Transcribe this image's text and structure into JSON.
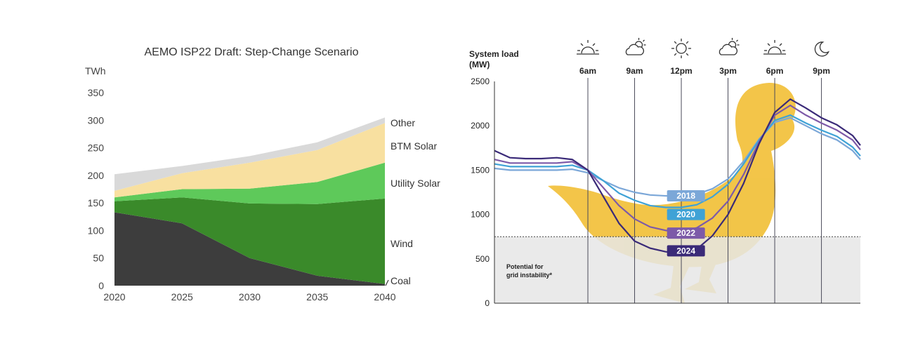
{
  "chart_data": [
    {
      "type": "area",
      "stacked": true,
      "title": "AEMO ISP22 Draft: Step-Change Scenario",
      "ylabel": "TWh",
      "xlabel": "",
      "ylim": [
        0,
        350
      ],
      "xlim": [
        2020,
        2040
      ],
      "x": [
        2020,
        2025,
        2030,
        2035,
        2040
      ],
      "yticks": [
        "0",
        "50",
        "100",
        "150",
        "200",
        "250",
        "300",
        "350"
      ],
      "xticks": [
        "2020",
        "2025",
        "2030",
        "2035",
        "2040"
      ],
      "grid": false,
      "series": [
        {
          "name": "Coal",
          "color": "#3d3d3d",
          "values": [
            133,
            113,
            50,
            18,
            3
          ]
        },
        {
          "name": "Wind",
          "color": "#3a8a2a",
          "values": [
            20,
            47,
            99,
            130,
            155
          ]
        },
        {
          "name": "Utility Solar",
          "color": "#5ec95a",
          "values": [
            7,
            15,
            27,
            40,
            65
          ]
        },
        {
          "name": "BTM Solar",
          "color": "#f8e0a0",
          "values": [
            12,
            29,
            47,
            58,
            72
          ]
        },
        {
          "name": "Other",
          "color": "#d9d9d9",
          "values": [
            30,
            13,
            12,
            14,
            10
          ]
        }
      ]
    },
    {
      "type": "line",
      "ylabel": "System load\n(MW)",
      "ylabel_lines": [
        "System load",
        "(MW)"
      ],
      "ylim": [
        0,
        2500
      ],
      "yticks": [
        "0",
        "500",
        "1000",
        "1500",
        "2000",
        "2500"
      ],
      "xlim": [
        0,
        23.5
      ],
      "time_markers": [
        {
          "label": "6am",
          "hour": 6,
          "icon": "sunrise-icon"
        },
        {
          "label": "9am",
          "hour": 9,
          "icon": "partly-cloudy-icon"
        },
        {
          "label": "12pm",
          "hour": 12,
          "icon": "sun-icon"
        },
        {
          "label": "3pm",
          "hour": 15,
          "icon": "partly-cloudy-icon"
        },
        {
          "label": "6pm",
          "hour": 18,
          "icon": "sunset-icon"
        },
        {
          "label": "9pm",
          "hour": 21,
          "icon": "moon-icon"
        }
      ],
      "threshold_mw": 750,
      "threshold_label": [
        "Potential for",
        "grid instability*"
      ],
      "x": [
        0,
        1,
        2,
        3,
        4,
        5,
        6,
        7,
        8,
        9,
        10,
        11,
        12,
        13,
        14,
        15,
        16,
        17,
        18,
        19,
        20,
        21,
        22,
        23,
        23.5
      ],
      "series": [
        {
          "name": "2018",
          "color": "#7ba7d8",
          "values": [
            1520,
            1500,
            1500,
            1500,
            1500,
            1510,
            1470,
            1380,
            1300,
            1250,
            1220,
            1210,
            1210,
            1230,
            1290,
            1400,
            1600,
            1850,
            2040,
            2090,
            2000,
            1910,
            1840,
            1720,
            1620
          ]
        },
        {
          "name": "2020",
          "color": "#3fa2d6",
          "values": [
            1570,
            1540,
            1540,
            1540,
            1540,
            1555,
            1500,
            1380,
            1240,
            1160,
            1100,
            1080,
            1080,
            1110,
            1200,
            1340,
            1570,
            1840,
            2060,
            2120,
            2030,
            1950,
            1880,
            1760,
            1660
          ]
        },
        {
          "name": "2022",
          "color": "#7d5aa8",
          "values": [
            1620,
            1580,
            1580,
            1580,
            1580,
            1595,
            1500,
            1300,
            1100,
            950,
            860,
            820,
            810,
            850,
            960,
            1150,
            1450,
            1820,
            2120,
            2230,
            2120,
            2030,
            1950,
            1840,
            1730
          ]
        },
        {
          "name": "2024",
          "color": "#3a2a78",
          "values": [
            1720,
            1640,
            1630,
            1630,
            1640,
            1620,
            1500,
            1200,
            900,
            700,
            620,
            580,
            560,
            610,
            760,
            1000,
            1350,
            1800,
            2150,
            2300,
            2200,
            2090,
            2010,
            1890,
            1780
          ]
        }
      ],
      "year_badges": [
        {
          "label": "2018",
          "color": "#7ba7d8",
          "hour": 12.3,
          "mw": 1210
        },
        {
          "label": "2020",
          "color": "#3fa2d6",
          "hour": 12.3,
          "mw": 1000
        },
        {
          "label": "2022",
          "color": "#7d5aa8",
          "hour": 12.3,
          "mw": 790
        },
        {
          "label": "2024",
          "color": "#3a2a78",
          "hour": 12.3,
          "mw": 590
        }
      ]
    }
  ]
}
